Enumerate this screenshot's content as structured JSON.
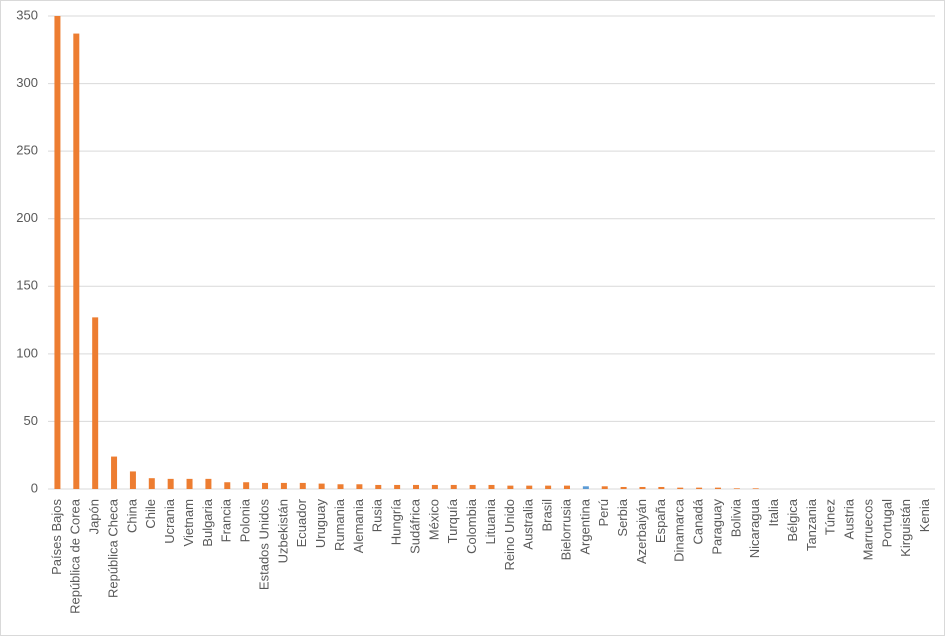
{
  "chart_data": {
    "type": "bar",
    "categories": [
      "Países Bajos",
      "República de Corea",
      "Japón",
      "República Checa",
      "China",
      "Chile",
      "Ucrania",
      "Vietnam",
      "Bulgaria",
      "Francia",
      "Polonia",
      "Estados Unidos",
      "Uzbekistán",
      "Ecuador",
      "Uruguay",
      "Rumania",
      "Alemania",
      "Rusia",
      "Hungría",
      "Sudáfrica",
      "México",
      "Turquía",
      "Colombia",
      "Lituania",
      "Reino Unido",
      "Australia",
      "Brasil",
      "Bielorrusia",
      "Argentina",
      "Perú",
      "Serbia",
      "Azerbaiyán",
      "España",
      "Dinamarca",
      "Canadá",
      "Paraguay",
      "Bolivia",
      "Nicaragua",
      "Italia",
      "Bélgica",
      "Tanzania",
      "Túnez",
      "Austria",
      "Marruecos",
      "Portugal",
      "Kirguistán",
      "Kenia"
    ],
    "values": [
      350,
      337,
      127,
      24,
      13,
      8,
      7.5,
      7.5,
      7.5,
      5,
      5,
      4.5,
      4.5,
      4.5,
      4,
      3.5,
      3.5,
      3,
      3,
      3,
      3,
      3,
      3,
      3,
      2.5,
      2.5,
      2.5,
      2.5,
      2,
      2,
      1.5,
      1.5,
      1.5,
      1,
      1,
      1,
      0.5,
      0.5,
      0,
      0,
      0,
      0,
      0,
      0,
      0,
      0,
      0
    ],
    "colors": [
      "#ed7d31",
      "#ed7d31",
      "#ed7d31",
      "#ed7d31",
      "#ed7d31",
      "#ed7d31",
      "#ed7d31",
      "#ed7d31",
      "#ed7d31",
      "#ed7d31",
      "#ed7d31",
      "#ed7d31",
      "#ed7d31",
      "#ed7d31",
      "#ed7d31",
      "#ed7d31",
      "#ed7d31",
      "#ed7d31",
      "#ed7d31",
      "#ed7d31",
      "#ed7d31",
      "#ed7d31",
      "#ed7d31",
      "#ed7d31",
      "#ed7d31",
      "#ed7d31",
      "#ed7d31",
      "#ed7d31",
      "#5b9bd5",
      "#ed7d31",
      "#ed7d31",
      "#ed7d31",
      "#ed7d31",
      "#ed7d31",
      "#ed7d31",
      "#ed7d31",
      "#ed7d31",
      "#ed7d31",
      "#ed7d31",
      "#ed7d31",
      "#ed7d31",
      "#ed7d31",
      "#ed7d31",
      "#ed7d31",
      "#ed7d31",
      "#ed7d31",
      "#ed7d31"
    ],
    "ylim": [
      0,
      350
    ],
    "yticks": [
      0,
      50,
      100,
      150,
      200,
      250,
      300,
      350
    ],
    "grid": true
  }
}
